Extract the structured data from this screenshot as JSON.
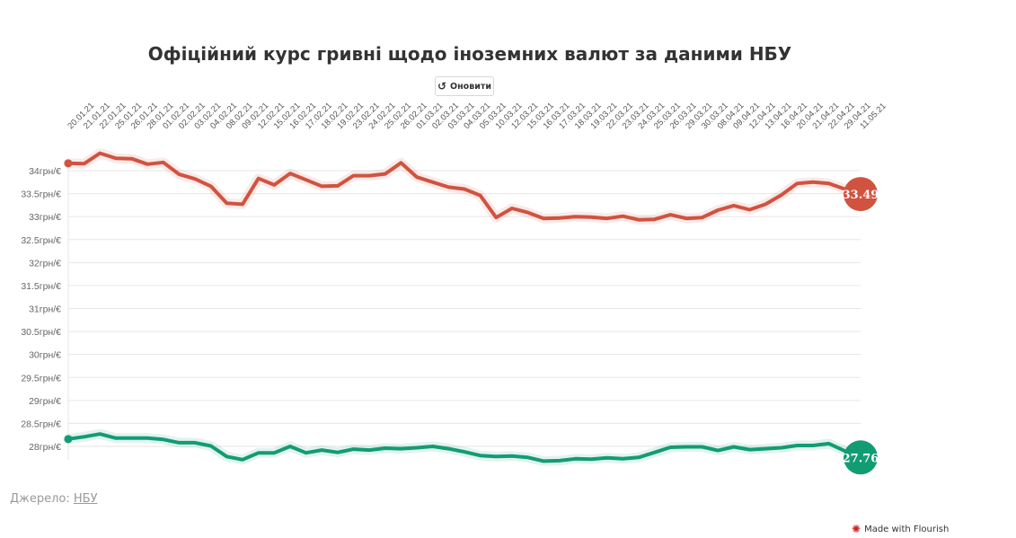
{
  "title": "Офіційний курс гривні щодо іноземних валют за даними НБУ",
  "refresh_label": "Оновити",
  "source": {
    "label": "Джерело:",
    "link": "НБУ"
  },
  "flourish_label": "Made with Flourish",
  "chart_data": {
    "type": "line",
    "title": "Офіційний курс гривні щодо іноземних валют за даними НБУ",
    "categories": [
      "20.01.21",
      "21.01.21",
      "22.01.21",
      "25.01.21",
      "26.01.21",
      "28.01.21",
      "01.02.21",
      "02.02.21",
      "03.02.21",
      "04.02.21",
      "08.02.21",
      "09.02.21",
      "12.02.21",
      "15.02.21",
      "16.02.21",
      "17.02.21",
      "18.02.21",
      "19.02.21",
      "23.02.21",
      "24.02.21",
      "25.02.21",
      "26.02.21",
      "01.03.21",
      "02.03.21",
      "03.03.21",
      "04.03.21",
      "05.03.21",
      "10.03.21",
      "12.03.21",
      "15.03.21",
      "16.03.21",
      "17.03.21",
      "18.03.21",
      "19.03.21",
      "22.03.21",
      "23.03.21",
      "24.03.21",
      "25.03.21",
      "26.03.21",
      "29.03.21",
      "30.03.21",
      "08.04.21",
      "09.04.21",
      "12.04.21",
      "13.04.21",
      "16.04.21",
      "20.04.21",
      "21.04.21",
      "22.04.21",
      "29.04.21",
      "11.05.21"
    ],
    "y_ticks": [
      "34грн/€",
      "33.5грн/€",
      "33грн/€",
      "32.5грн/€",
      "32грн/€",
      "31.5грн/€",
      "31грн/€",
      "30.5грн/€",
      "30грн/€",
      "29.5грн/€",
      "29грн/€",
      "28.5грн/€",
      "28грн/€"
    ],
    "ylim": [
      27.85,
      34.35
    ],
    "grid": true,
    "series": [
      {
        "color": "#d05340",
        "end_label": "33.49",
        "values": [
          34.16,
          34.15,
          34.38,
          34.27,
          34.26,
          34.14,
          34.18,
          33.92,
          33.82,
          33.66,
          33.29,
          33.27,
          33.83,
          33.69,
          33.94,
          33.8,
          33.66,
          33.67,
          33.89,
          33.89,
          33.93,
          34.17,
          33.86,
          33.75,
          33.64,
          33.6,
          33.46,
          32.98,
          33.18,
          33.09,
          32.96,
          32.97,
          33.0,
          32.99,
          32.96,
          33.01,
          32.93,
          32.94,
          33.04,
          32.96,
          32.98,
          33.14,
          33.24,
          33.15,
          33.27,
          33.47,
          33.72,
          33.75,
          33.72,
          33.6,
          33.49
        ]
      },
      {
        "color": "#129c73",
        "end_label": "27.76",
        "values": [
          28.16,
          28.21,
          28.27,
          28.18,
          28.18,
          28.18,
          28.15,
          28.08,
          28.08,
          28.01,
          27.78,
          27.71,
          27.86,
          27.86,
          28.0,
          27.86,
          27.92,
          27.87,
          27.94,
          27.92,
          27.96,
          27.95,
          27.97,
          28.0,
          27.95,
          27.88,
          27.8,
          27.78,
          27.79,
          27.76,
          27.68,
          27.69,
          27.73,
          27.72,
          27.75,
          27.73,
          27.76,
          27.87,
          27.98,
          27.99,
          27.99,
          27.91,
          27.99,
          27.93,
          27.95,
          27.97,
          28.02,
          28.02,
          28.06,
          27.9,
          27.76
        ]
      }
    ]
  }
}
